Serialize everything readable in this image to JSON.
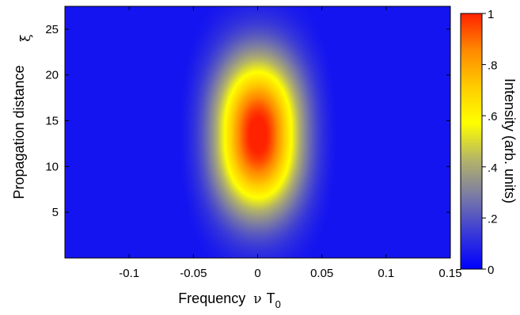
{
  "chart_data": {
    "type": "heatmap",
    "title": "",
    "xlabel": {
      "text": "Frequency",
      "symbol": "ν",
      "variable": "T",
      "subscript": "0"
    },
    "ylabel": {
      "text": "Propagation distance",
      "symbol": "ξ"
    },
    "xlim": [
      -0.15,
      0.15
    ],
    "ylim": [
      0,
      27.5
    ],
    "x_ticks": [
      {
        "value": -0.1,
        "label": "-0.1"
      },
      {
        "value": -0.05,
        "label": "-0.05"
      },
      {
        "value": 0,
        "label": "0"
      },
      {
        "value": 0.05,
        "label": "0.05"
      },
      {
        "value": 0.1,
        "label": "0.1"
      },
      {
        "value": 0.15,
        "label": "0.15"
      }
    ],
    "y_ticks": [
      {
        "value": 5,
        "label": "5"
      },
      {
        "value": 10,
        "label": "10"
      },
      {
        "value": 15,
        "label": "15"
      },
      {
        "value": 20,
        "label": "20"
      },
      {
        "value": 25,
        "label": "25"
      }
    ],
    "colorbar": {
      "label": "Intensity (arb. units)",
      "range": [
        0,
        1
      ],
      "ticks": [
        {
          "value": 0,
          "label": "0"
        },
        {
          "value": 0.2,
          "label": ".2"
        },
        {
          "value": 0.4,
          "label": ".4"
        },
        {
          "value": 0.6,
          "label": ".6"
        },
        {
          "value": 0.8,
          "label": ".8"
        },
        {
          "value": 1,
          "label": "1"
        }
      ],
      "colormap": [
        "#0000ff",
        "#3a3ad8",
        "#7a7aa6",
        "#b4b468",
        "#ffff00",
        "#ffcc00",
        "#ff8800",
        "#ff2200"
      ]
    },
    "peak": {
      "x": 0,
      "y": 13.5,
      "intensity": 1.0
    },
    "background_intensity": 0.05
  }
}
